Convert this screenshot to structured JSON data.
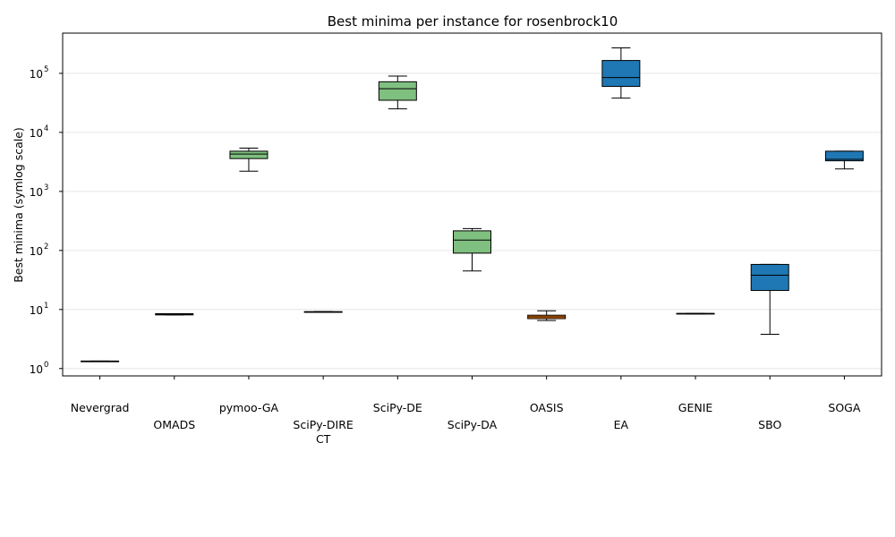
{
  "chart_data": {
    "type": "box",
    "title": "Best minima per instance for rosenbrock10",
    "xlabel": "",
    "ylabel": "Best minima (symlog scale)",
    "yscale": "symlog",
    "ylim": [
      0.75,
      480000
    ],
    "yticks": [
      {
        "value": 1,
        "base": "10",
        "exp": "0"
      },
      {
        "value": 10,
        "base": "10",
        "exp": "1"
      },
      {
        "value": 100,
        "base": "10",
        "exp": "2"
      },
      {
        "value": 1000,
        "base": "10",
        "exp": "3"
      },
      {
        "value": 10000,
        "base": "10",
        "exp": "4"
      },
      {
        "value": 100000,
        "base": "10",
        "exp": "5"
      }
    ],
    "grid": "horizontal",
    "colors": {
      "green": "#7fbf7f",
      "blue": "#1f77b4",
      "orange": "#ff7f0e",
      "white": "#ffffff",
      "median": "#000000"
    },
    "boxes": [
      {
        "label": [
          "Nevergrad"
        ],
        "row": 0,
        "color": "white",
        "whislo": 1.32,
        "q1": 1.32,
        "med": 1.33,
        "q3": 1.34,
        "whishi": 1.34
      },
      {
        "label": [
          "OMADS"
        ],
        "row": 1,
        "color": "white",
        "whislo": 8.1,
        "q1": 8.1,
        "med": 8.3,
        "q3": 8.5,
        "whishi": 8.5
      },
      {
        "label": [
          "pymoo-GA"
        ],
        "row": 0,
        "color": "green",
        "whislo": 2200,
        "q1": 3600,
        "med": 4300,
        "q3": 4800,
        "whishi": 5400
      },
      {
        "label": [
          "SciPy-DIRE",
          "CT"
        ],
        "row": 1,
        "color": "white",
        "whislo": 9.0,
        "q1": 9.0,
        "med": 9.1,
        "q3": 9.2,
        "whishi": 9.2
      },
      {
        "label": [
          "SciPy-DE"
        ],
        "row": 0,
        "color": "green",
        "whislo": 25000,
        "q1": 35000,
        "med": 55000,
        "q3": 72000,
        "whishi": 90000
      },
      {
        "label": [
          "SciPy-DA"
        ],
        "row": 1,
        "color": "green",
        "whislo": 45,
        "q1": 90,
        "med": 150,
        "q3": 215,
        "whishi": 235
      },
      {
        "label": [
          "OASIS"
        ],
        "row": 0,
        "color": "orange",
        "whislo": 6.5,
        "q1": 7.0,
        "med": 7.5,
        "q3": 8.0,
        "whishi": 9.5
      },
      {
        "label": [
          "EA"
        ],
        "row": 1,
        "color": "blue",
        "whislo": 38000,
        "q1": 60000,
        "med": 85000,
        "q3": 165000,
        "whishi": 270000
      },
      {
        "label": [
          "GENIE"
        ],
        "row": 0,
        "color": "white",
        "whislo": 8.4,
        "q1": 8.4,
        "med": 8.5,
        "q3": 8.6,
        "whishi": 8.6
      },
      {
        "label": [
          "SBO"
        ],
        "row": 1,
        "color": "blue",
        "whislo": 3.8,
        "q1": 21,
        "med": 38,
        "q3": 58,
        "whishi": 58
      },
      {
        "label": [
          "SOGA"
        ],
        "row": 0,
        "color": "blue",
        "whislo": 2400,
        "q1": 3300,
        "med": 3500,
        "q3": 4800,
        "whishi": 4800
      }
    ]
  }
}
